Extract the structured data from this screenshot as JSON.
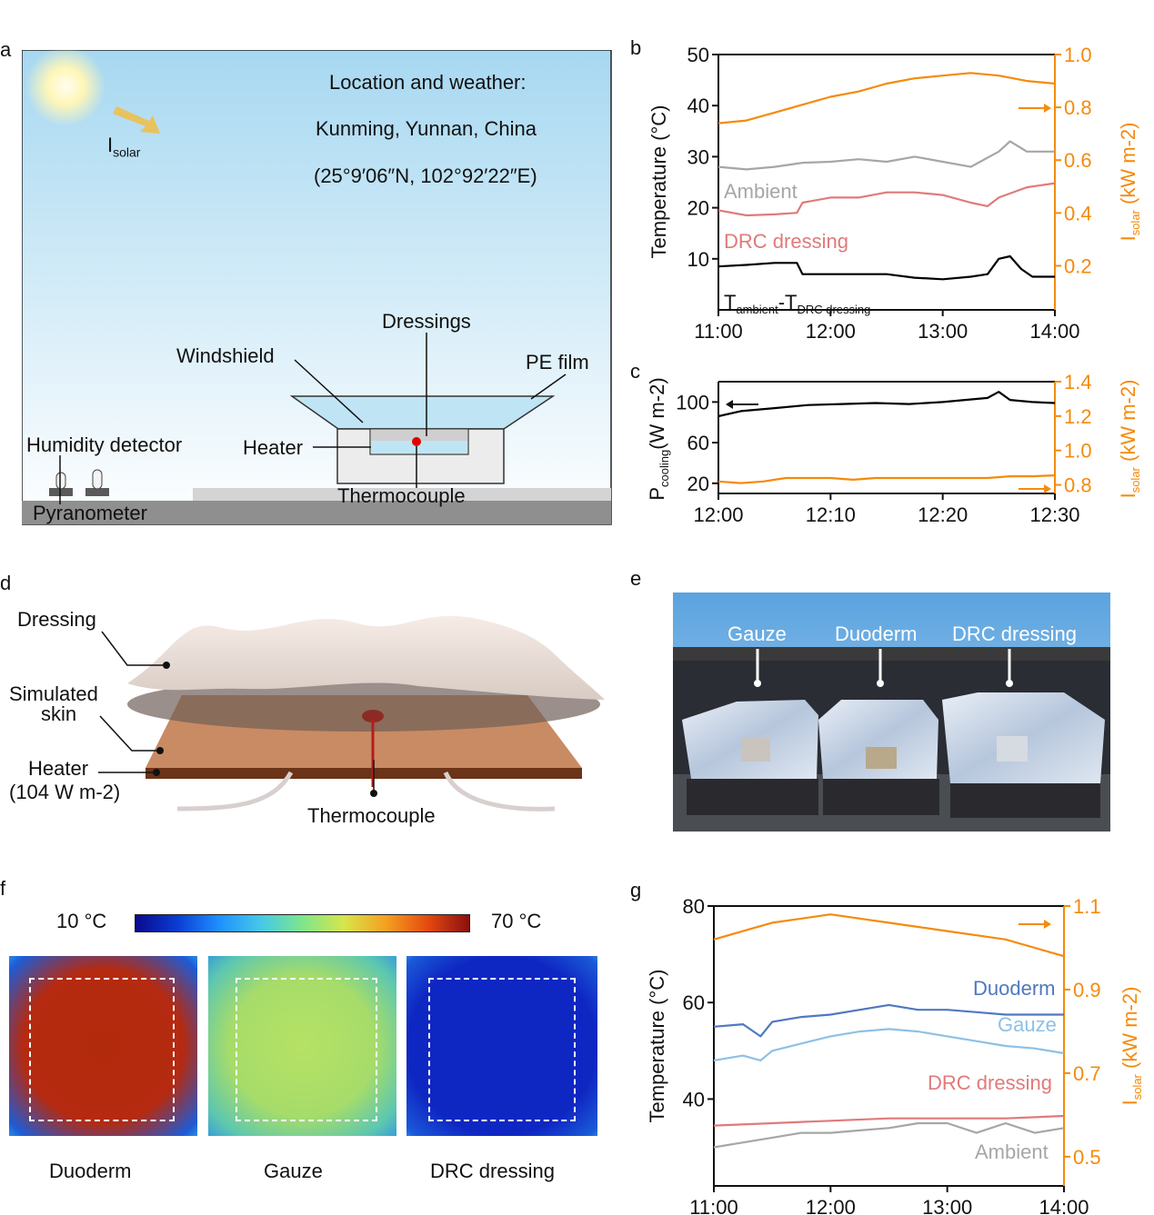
{
  "panels": {
    "a": "a",
    "b": "b",
    "c": "c",
    "d": "d",
    "e": "e",
    "f": "f",
    "g": "g"
  },
  "panel_a": {
    "location_title": "Location and weather:",
    "location_city": "Kunming, Yunnan, China",
    "location_coords": "(25°9′06″N, 102°92′22″E)",
    "isolar_main": "I",
    "isolar_sub": "solar",
    "labels": {
      "dressings": "Dressings",
      "windshield": "Windshield",
      "pe_film": "PE film",
      "humidity": "Humidity detector",
      "heater": "Heater",
      "thermocouple": "Thermocouple",
      "pyranometer": "Pyranometer"
    }
  },
  "panel_d": {
    "dressing": "Dressing",
    "simulated_1": "Simulated",
    "simulated_2": "skin",
    "heater_1": "Heater",
    "heater_2": "(104 W m-2)",
    "thermocouple": "Thermocouple"
  },
  "panel_e": {
    "labels": [
      "Gauze",
      "Duoderm",
      "DRC dressing"
    ]
  },
  "panel_f": {
    "scale_min": "10 °C",
    "scale_max": "70 °C",
    "labels": [
      "Duoderm",
      "Gauze",
      "DRC dressing"
    ],
    "colors": {
      "duoderm": "#b52a10",
      "gauze": "#a6dc6a",
      "drc": "#0f27c2"
    }
  },
  "chart_data": [
    {
      "id": "b",
      "type": "line",
      "x_ticks": [
        "11:00",
        "12:00",
        "13:00",
        "14:00"
      ],
      "xlim": [
        11,
        14
      ],
      "ylabel": "Temperature (oC)",
      "ylim": [
        0,
        50
      ],
      "y_ticks": [
        "10",
        "20",
        "30",
        "40",
        "50"
      ],
      "y2label": "Isolar (kW m-2)",
      "y2lim": [
        0.033,
        1.0
      ],
      "y2_ticks": [
        "0.2",
        "0.4",
        "0.6",
        "0.8",
        "1.0"
      ],
      "series": [
        {
          "name": "Isolar",
          "axis": "right",
          "color": "#f58a0b",
          "x": [
            11.0,
            11.25,
            11.5,
            11.75,
            12.0,
            12.25,
            12.5,
            12.75,
            13.0,
            13.25,
            13.5,
            13.75,
            14.0
          ],
          "values": [
            0.74,
            0.75,
            0.78,
            0.81,
            0.84,
            0.86,
            0.89,
            0.91,
            0.92,
            0.93,
            0.92,
            0.9,
            0.89
          ]
        },
        {
          "name": "Ambient",
          "axis": "left",
          "color": "#a6a6a6",
          "x": [
            11.0,
            11.25,
            11.5,
            11.75,
            12.0,
            12.25,
            12.5,
            12.75,
            13.0,
            13.25,
            13.5,
            13.6,
            13.75,
            14.0
          ],
          "values": [
            28,
            27.5,
            28,
            28.8,
            29,
            29.5,
            29,
            30,
            29,
            28,
            31,
            33,
            31,
            31
          ]
        },
        {
          "name": "DRC dressing",
          "axis": "left",
          "color": "#e07a7a",
          "x": [
            11.0,
            11.25,
            11.5,
            11.7,
            11.75,
            12.0,
            12.25,
            12.5,
            12.75,
            13.0,
            13.25,
            13.4,
            13.5,
            13.75,
            14.0
          ],
          "values": [
            19.5,
            18.5,
            18.7,
            19,
            21,
            22,
            22,
            23,
            23,
            22.5,
            21,
            20.3,
            22,
            24,
            24.8
          ]
        },
        {
          "name": "Tambient-TDRC dressing",
          "axis": "left",
          "color": "#000000",
          "x": [
            11.0,
            11.25,
            11.5,
            11.7,
            11.75,
            12.0,
            12.25,
            12.5,
            12.75,
            13.0,
            13.25,
            13.4,
            13.5,
            13.6,
            13.7,
            13.8,
            14.0
          ],
          "values": [
            8.5,
            8.8,
            9.2,
            9.2,
            7,
            7,
            7,
            7,
            6.3,
            6,
            6.5,
            7,
            10,
            10.5,
            8,
            6.5,
            6.5
          ]
        }
      ],
      "legend": [
        "Ambient",
        "DRC dressing",
        "Tambient-TDRC dressing"
      ],
      "legend_text": {
        "ambient": "Ambient",
        "drc": "DRC dressing",
        "diff_main": "T",
        "diff_sub1": "ambient",
        "diff_dash": "-T",
        "diff_sub2": "DRC dressing"
      }
    },
    {
      "id": "c",
      "type": "line",
      "x_ticks": [
        "12:00",
        "12:10",
        "12:20",
        "12:30"
      ],
      "xlim": [
        0,
        30
      ],
      "ylabel": "Pcooling (W m-2)",
      "ylim": [
        10,
        120
      ],
      "y_ticks": [
        "20",
        "60",
        "100"
      ],
      "y2label": "Isolar (kW m-2)",
      "y2lim": [
        0.75,
        1.4
      ],
      "y2_ticks": [
        "0.8",
        "1.0",
        "1.2",
        "1.4"
      ],
      "series": [
        {
          "name": "Pcooling",
          "axis": "left",
          "color": "#000000",
          "x": [
            0,
            2,
            5,
            8,
            11,
            14,
            17,
            20,
            22,
            24,
            25,
            26,
            28,
            30
          ],
          "values": [
            86,
            91,
            94,
            97,
            98,
            99,
            98,
            100,
            102,
            104,
            110,
            102,
            100,
            99
          ]
        },
        {
          "name": "Isolar",
          "axis": "right",
          "color": "#f58a0b",
          "x": [
            0,
            2,
            4,
            6,
            8,
            10,
            12,
            14,
            16,
            18,
            20,
            22,
            24,
            26,
            28,
            30
          ],
          "values": [
            0.82,
            0.81,
            0.82,
            0.84,
            0.84,
            0.84,
            0.83,
            0.84,
            0.84,
            0.84,
            0.84,
            0.84,
            0.84,
            0.85,
            0.85,
            0.855
          ]
        }
      ]
    },
    {
      "id": "g",
      "type": "line",
      "x_ticks": [
        "11:00",
        "12:00",
        "13:00",
        "14:00"
      ],
      "xlim": [
        11,
        14
      ],
      "ylabel": "Temperature (oC)",
      "ylim": [
        22,
        80
      ],
      "y_ticks": [
        "40",
        "60",
        "80"
      ],
      "y2label": "Isolar (kW m-2)",
      "y2lim": [
        0.43,
        1.1
      ],
      "y2_ticks": [
        "0.5",
        "0.7",
        "0.9",
        "1.1"
      ],
      "series": [
        {
          "name": "Isolar",
          "axis": "right",
          "color": "#f58a0b",
          "x": [
            11.0,
            11.25,
            11.5,
            11.75,
            12.0,
            12.25,
            12.5,
            12.75,
            13.0,
            13.25,
            13.5,
            13.75,
            14.0
          ],
          "values": [
            1.02,
            1.04,
            1.06,
            1.07,
            1.08,
            1.07,
            1.06,
            1.05,
            1.04,
            1.03,
            1.02,
            1.0,
            0.98
          ]
        },
        {
          "name": "Duoderm",
          "axis": "left",
          "color": "#4f78c0",
          "x": [
            11.0,
            11.25,
            11.4,
            11.5,
            11.75,
            12.0,
            12.25,
            12.5,
            12.75,
            13.0,
            13.25,
            13.5,
            13.75,
            14.0
          ],
          "values": [
            55,
            55.5,
            53,
            56,
            57,
            57.5,
            58.5,
            59.5,
            58.5,
            58.5,
            58,
            57.5,
            57.5,
            57.5
          ]
        },
        {
          "name": "Gauze",
          "axis": "left",
          "color": "#8ec0e6",
          "x": [
            11.0,
            11.25,
            11.4,
            11.5,
            11.75,
            12.0,
            12.25,
            12.5,
            12.75,
            13.0,
            13.25,
            13.5,
            13.75,
            14.0
          ],
          "values": [
            48,
            49,
            48,
            50,
            51.5,
            53,
            54,
            54.5,
            54,
            53,
            52,
            51,
            50.5,
            49.5
          ]
        },
        {
          "name": "DRC dressing",
          "axis": "left",
          "color": "#e07a7a",
          "x": [
            11.0,
            11.5,
            12.0,
            12.5,
            13.0,
            13.5,
            14.0
          ],
          "values": [
            34.5,
            35,
            35.5,
            36,
            36,
            36,
            36.5
          ]
        },
        {
          "name": "Ambient",
          "axis": "left",
          "color": "#a6a6a6",
          "x": [
            11.0,
            11.25,
            11.5,
            11.75,
            12.0,
            12.25,
            12.5,
            12.75,
            13.0,
            13.25,
            13.5,
            13.75,
            14.0
          ],
          "values": [
            30,
            31,
            32,
            33,
            33,
            33.5,
            34,
            35,
            35,
            33,
            35,
            33,
            34
          ]
        }
      ],
      "legend": [
        "Duoderm",
        "Gauze",
        "DRC dressing",
        "Ambient"
      ]
    }
  ]
}
